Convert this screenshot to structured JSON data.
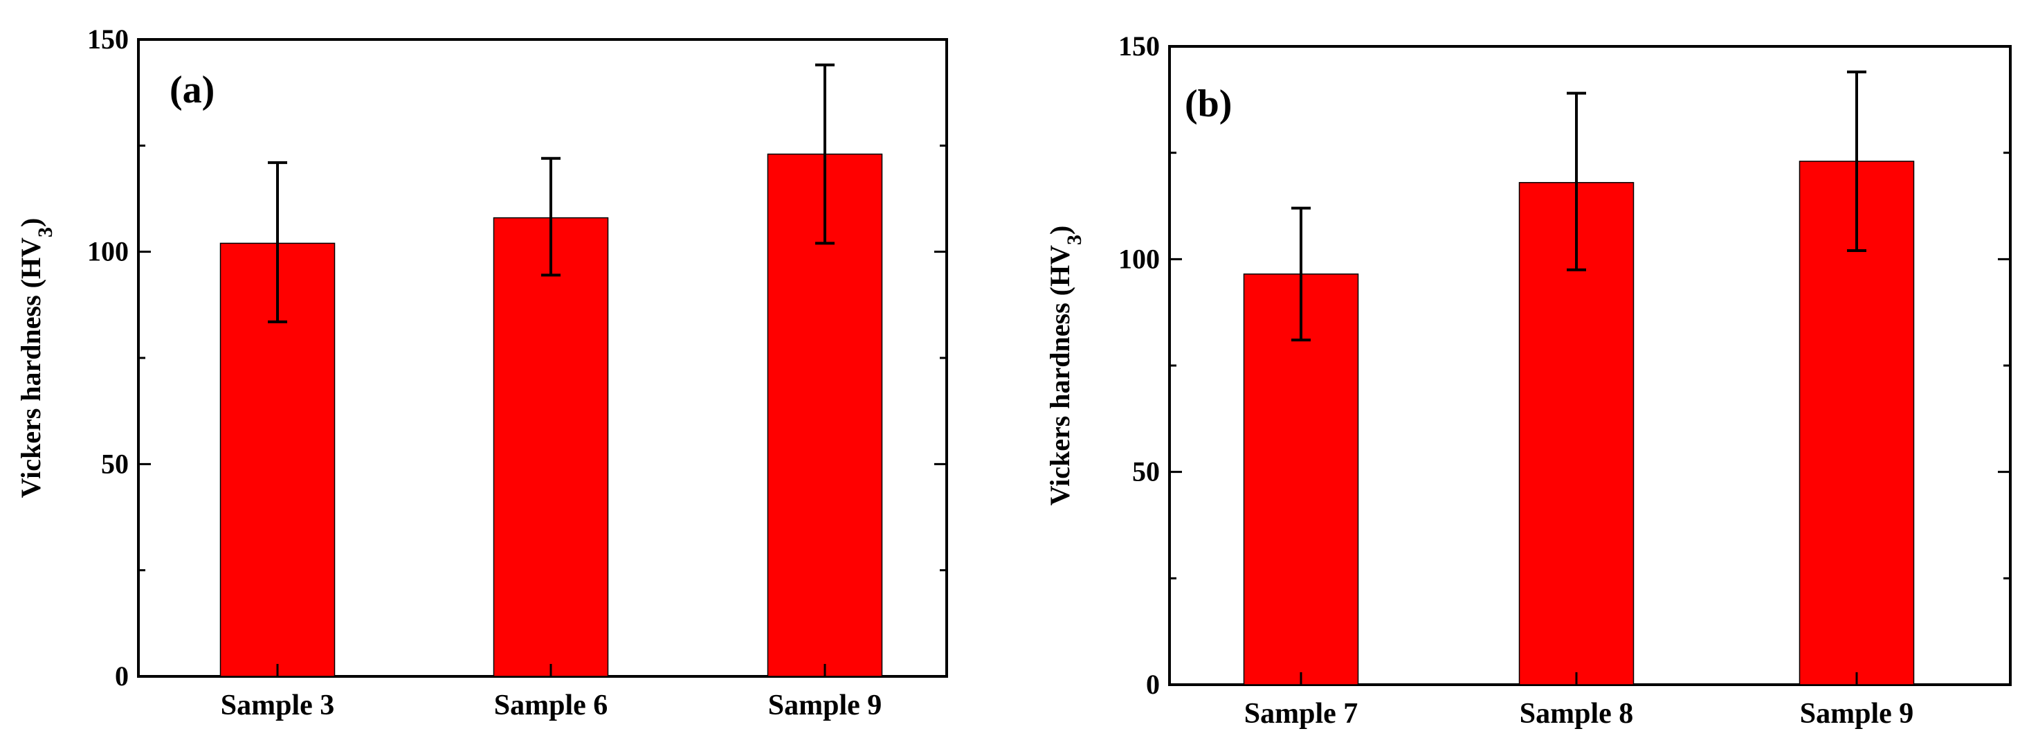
{
  "chart_data": [
    {
      "type": "bar",
      "panel_label": "(a)",
      "title": "",
      "xlabel": "",
      "ylabel_main": "Vickers hardness (HV",
      "ylabel_sub": "3",
      "ylabel_close": ")",
      "ylim": [
        0,
        150
      ],
      "yticks": [
        0,
        50,
        100,
        150
      ],
      "categories": [
        "Sample 3",
        "Sample 6",
        "Sample 9"
      ],
      "values": [
        102,
        108,
        123
      ],
      "error_low": [
        83.5,
        94.5,
        102
      ],
      "error_high": [
        121,
        122,
        144
      ],
      "bar_color": "#ff0000"
    },
    {
      "type": "bar",
      "panel_label": "(b)",
      "title": "",
      "xlabel": "",
      "ylabel_main": "Vickers hardness (HV",
      "ylabel_sub": "3",
      "ylabel_close": ")",
      "ylim": [
        0,
        150
      ],
      "yticks": [
        0,
        50,
        100,
        150
      ],
      "categories": [
        "Sample 7",
        "Sample 8",
        "Sample 9"
      ],
      "values": [
        96.5,
        118,
        123
      ],
      "error_low": [
        81,
        97.5,
        102
      ],
      "error_high": [
        112,
        139,
        144
      ],
      "bar_color": "#ff0000"
    }
  ]
}
